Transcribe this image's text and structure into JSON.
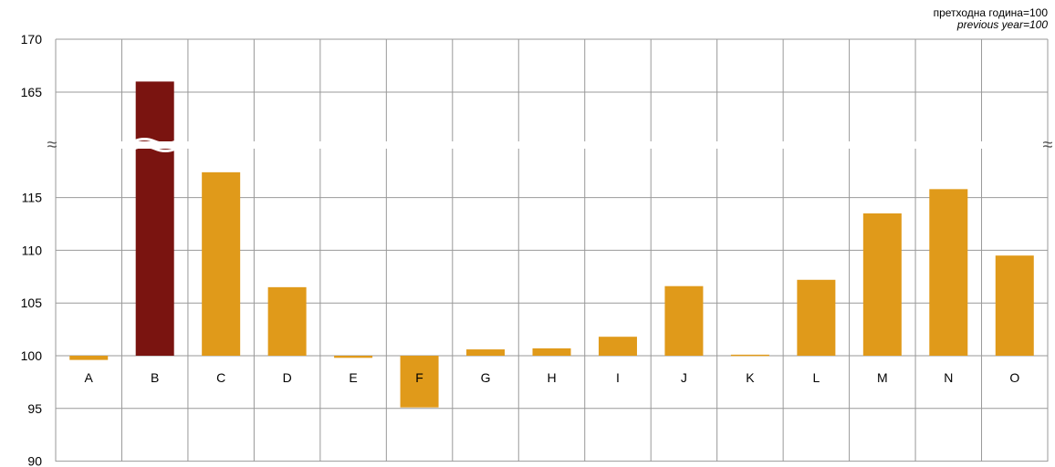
{
  "note": {
    "line1": "претходна година=100",
    "line2": "previous year=100"
  },
  "colors": {
    "bar": "#E09A1A",
    "highlight": "#7A1410",
    "grid": "#999999",
    "background": "#FFFFFF"
  },
  "chart_data": {
    "type": "bar",
    "categories": [
      "A",
      "B",
      "C",
      "D",
      "E",
      "F",
      "G",
      "H",
      "I",
      "J",
      "K",
      "L",
      "M",
      "N",
      "O"
    ],
    "values": [
      99.6,
      166.0,
      117.4,
      106.5,
      99.8,
      95.1,
      100.6,
      100.7,
      101.8,
      106.6,
      100.1,
      107.2,
      113.5,
      115.8,
      109.5
    ],
    "highlight_index": 1,
    "baseline": 100,
    "axis_break": {
      "between": [
        117.4,
        160
      ],
      "marker": "≈"
    },
    "y_ticks_lower": [
      90,
      95,
      100,
      105,
      110,
      115
    ],
    "y_ticks_upper": [
      165,
      170
    ],
    "ylim": [
      90,
      170
    ],
    "grid": true,
    "legend": "none"
  }
}
